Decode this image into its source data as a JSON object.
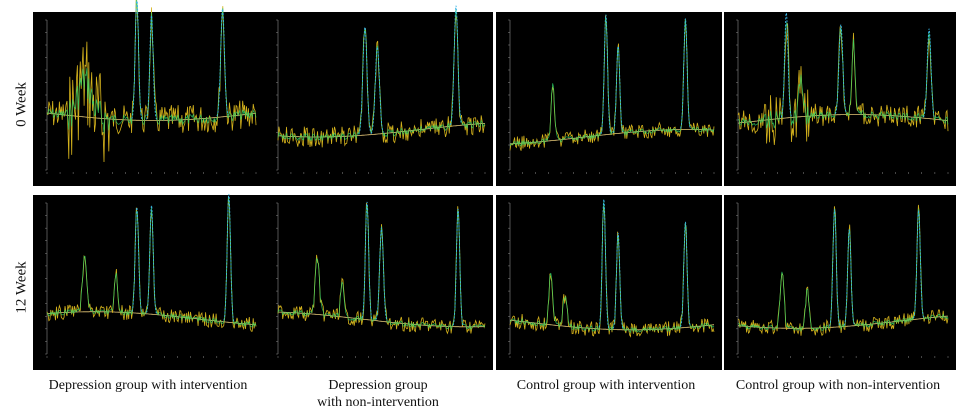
{
  "row_labels": [
    "0 Week",
    "12 Week"
  ],
  "column_labels": [
    "Depression group with intervention",
    "Depression group\nwith non-intervention",
    "Control group with intervention",
    "Control group with non-intervention"
  ],
  "colors": {
    "background": "#000000",
    "spectrum": "#d4b21c",
    "fit": "#2bd36b",
    "peak_fit": "#3ab6e6",
    "baseline": "#e6c878",
    "axis": "#8a8a8a",
    "text": "#c9c9c9"
  }
}
